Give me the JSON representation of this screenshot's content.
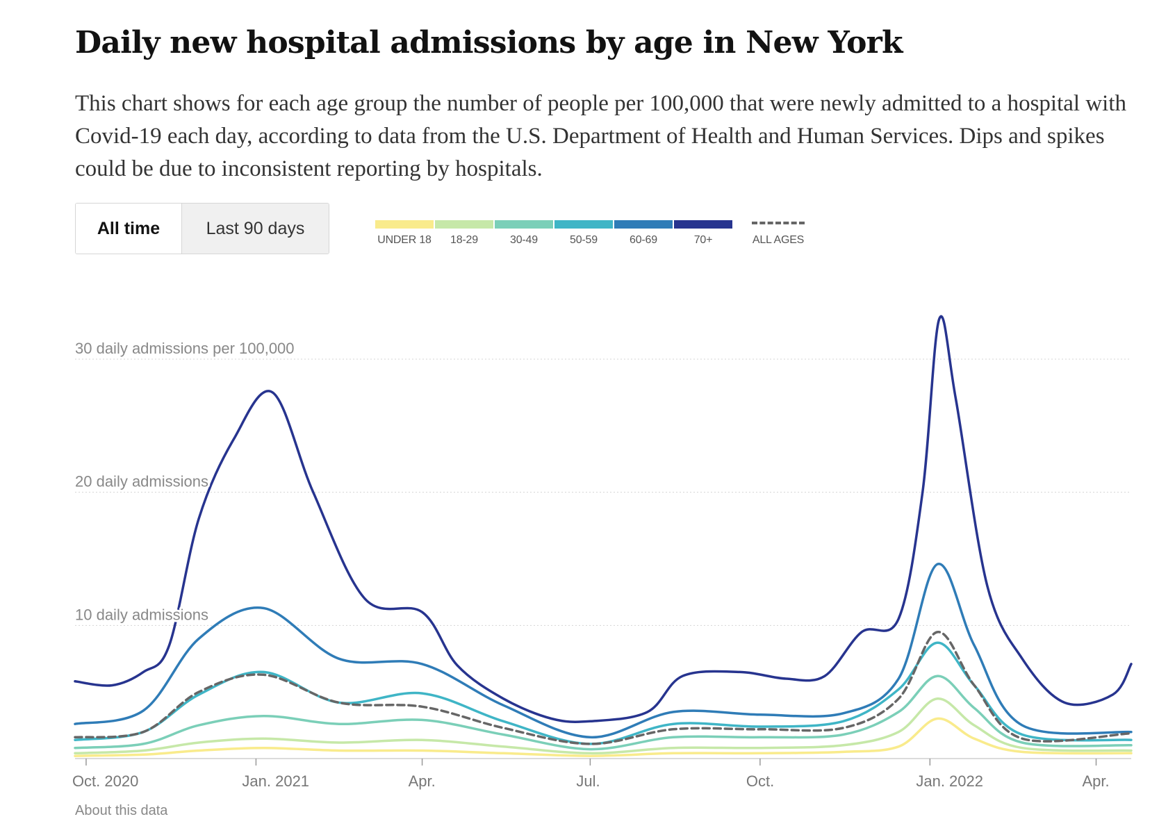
{
  "title": "Daily new hospital admissions by age in New York",
  "subtitle": "This chart shows for each age group the number of people per 100,000 that were newly admitted to a hospital with Covid-19 each day, according to data from the U.S. Department of Health and Human Services. Dips and spikes could be due to inconsistent reporting by hospitals.",
  "toggle": {
    "all_time": "All time",
    "last_90": "Last 90 days"
  },
  "legend": {
    "items": [
      {
        "label": "UNDER 18",
        "color": "#f9eb8c"
      },
      {
        "label": "18-29",
        "color": "#c6e8a8"
      },
      {
        "label": "30-49",
        "color": "#7bcfb8"
      },
      {
        "label": "50-59",
        "color": "#3fb5c6"
      },
      {
        "label": "60-69",
        "color": "#2f7cb7"
      },
      {
        "label": "70+",
        "color": "#27348f"
      }
    ],
    "all_ages": {
      "label": "ALL AGES",
      "color": "#666666"
    }
  },
  "about_text": "About this data",
  "chart_data": {
    "type": "line",
    "y_axis": {
      "ticks": [
        {
          "value": 10,
          "label": "10 daily admissions"
        },
        {
          "value": 20,
          "label": "20 daily admissions"
        },
        {
          "value": 30,
          "label": "30 daily admissions per 100,000"
        }
      ],
      "ylim": [
        0,
        34
      ]
    },
    "x_axis": {
      "range": [
        "2020-09-25",
        "2022-04-20"
      ],
      "ticks": [
        {
          "date": "2020-10-01",
          "label": "Oct. 2020"
        },
        {
          "date": "2021-01-01",
          "label": "Jan. 2021"
        },
        {
          "date": "2021-04-01",
          "label": "Apr."
        },
        {
          "date": "2021-07-01",
          "label": "Jul."
        },
        {
          "date": "2021-10-01",
          "label": "Oct."
        },
        {
          "date": "2022-01-01",
          "label": "Jan. 2022"
        },
        {
          "date": "2022-04-01",
          "label": "Apr."
        }
      ]
    },
    "grid": "horizontal dotted",
    "series": [
      {
        "name": "UNDER 18",
        "color": "#f9eb8c",
        "dashed": false,
        "points": [
          [
            "2020-09-25",
            0.2
          ],
          [
            "2020-11-01",
            0.3
          ],
          [
            "2020-12-01",
            0.6
          ],
          [
            "2021-01-05",
            0.8
          ],
          [
            "2021-02-15",
            0.6
          ],
          [
            "2021-04-01",
            0.6
          ],
          [
            "2021-05-15",
            0.4
          ],
          [
            "2021-07-01",
            0.2
          ],
          [
            "2021-08-15",
            0.4
          ],
          [
            "2021-10-01",
            0.4
          ],
          [
            "2021-11-15",
            0.5
          ],
          [
            "2021-12-15",
            0.9
          ],
          [
            "2022-01-05",
            3.0
          ],
          [
            "2022-01-25",
            1.5
          ],
          [
            "2022-02-20",
            0.5
          ],
          [
            "2022-04-20",
            0.4
          ]
        ]
      },
      {
        "name": "18-29",
        "color": "#c6e8a8",
        "dashed": false,
        "points": [
          [
            "2020-09-25",
            0.4
          ],
          [
            "2020-11-01",
            0.6
          ],
          [
            "2020-12-01",
            1.2
          ],
          [
            "2021-01-05",
            1.5
          ],
          [
            "2021-02-15",
            1.2
          ],
          [
            "2021-04-01",
            1.4
          ],
          [
            "2021-05-15",
            0.9
          ],
          [
            "2021-07-01",
            0.4
          ],
          [
            "2021-08-15",
            0.8
          ],
          [
            "2021-10-01",
            0.8
          ],
          [
            "2021-11-15",
            1.0
          ],
          [
            "2021-12-15",
            2.0
          ],
          [
            "2022-01-05",
            4.5
          ],
          [
            "2022-01-25",
            2.5
          ],
          [
            "2022-02-20",
            0.8
          ],
          [
            "2022-04-20",
            0.6
          ]
        ]
      },
      {
        "name": "30-49",
        "color": "#7bcfb8",
        "dashed": false,
        "points": [
          [
            "2020-09-25",
            0.8
          ],
          [
            "2020-11-01",
            1.1
          ],
          [
            "2020-12-01",
            2.5
          ],
          [
            "2021-01-05",
            3.2
          ],
          [
            "2021-02-15",
            2.6
          ],
          [
            "2021-04-01",
            2.9
          ],
          [
            "2021-05-15",
            1.8
          ],
          [
            "2021-07-01",
            0.7
          ],
          [
            "2021-08-15",
            1.6
          ],
          [
            "2021-10-01",
            1.6
          ],
          [
            "2021-11-15",
            1.8
          ],
          [
            "2021-12-15",
            3.5
          ],
          [
            "2022-01-05",
            6.2
          ],
          [
            "2022-01-25",
            3.8
          ],
          [
            "2022-02-20",
            1.2
          ],
          [
            "2022-04-20",
            1.0
          ]
        ]
      },
      {
        "name": "50-59",
        "color": "#3fb5c6",
        "dashed": false,
        "points": [
          [
            "2020-09-25",
            1.4
          ],
          [
            "2020-11-01",
            2.0
          ],
          [
            "2020-12-01",
            4.8
          ],
          [
            "2021-01-05",
            6.5
          ],
          [
            "2021-02-15",
            4.2
          ],
          [
            "2021-04-01",
            4.9
          ],
          [
            "2021-05-15",
            2.8
          ],
          [
            "2021-07-01",
            1.1
          ],
          [
            "2021-08-15",
            2.6
          ],
          [
            "2021-10-01",
            2.4
          ],
          [
            "2021-11-15",
            2.8
          ],
          [
            "2021-12-15",
            5.2
          ],
          [
            "2022-01-05",
            8.7
          ],
          [
            "2022-01-25",
            5.5
          ],
          [
            "2022-02-20",
            1.8
          ],
          [
            "2022-04-20",
            1.4
          ]
        ]
      },
      {
        "name": "60-69",
        "color": "#2f7cb7",
        "dashed": false,
        "points": [
          [
            "2020-09-25",
            2.6
          ],
          [
            "2020-11-01",
            3.6
          ],
          [
            "2020-12-01",
            9.0
          ],
          [
            "2021-01-05",
            11.3
          ],
          [
            "2021-02-15",
            7.5
          ],
          [
            "2021-04-01",
            7.1
          ],
          [
            "2021-05-15",
            4.0
          ],
          [
            "2021-07-01",
            1.6
          ],
          [
            "2021-08-15",
            3.5
          ],
          [
            "2021-10-01",
            3.3
          ],
          [
            "2021-11-15",
            3.4
          ],
          [
            "2021-12-15",
            6.0
          ],
          [
            "2022-01-05",
            14.6
          ],
          [
            "2022-01-25",
            8.5
          ],
          [
            "2022-02-20",
            2.5
          ],
          [
            "2022-04-20",
            2.0
          ]
        ]
      },
      {
        "name": "70+",
        "color": "#27348f",
        "dashed": false,
        "points": [
          [
            "2020-09-25",
            5.8
          ],
          [
            "2020-10-15",
            5.5
          ],
          [
            "2020-11-01",
            6.5
          ],
          [
            "2020-11-15",
            8.5
          ],
          [
            "2020-12-01",
            18.0
          ],
          [
            "2020-12-20",
            24.0
          ],
          [
            "2021-01-10",
            27.5
          ],
          [
            "2021-02-01",
            20.0
          ],
          [
            "2021-03-01",
            12.0
          ],
          [
            "2021-04-01",
            11.0
          ],
          [
            "2021-04-20",
            7.0
          ],
          [
            "2021-05-15",
            4.5
          ],
          [
            "2021-06-10",
            3.0
          ],
          [
            "2021-07-01",
            2.8
          ],
          [
            "2021-08-01",
            3.5
          ],
          [
            "2021-08-20",
            6.2
          ],
          [
            "2021-09-20",
            6.5
          ],
          [
            "2021-10-15",
            6.0
          ],
          [
            "2021-11-05",
            6.2
          ],
          [
            "2021-11-25",
            9.5
          ],
          [
            "2021-12-15",
            10.5
          ],
          [
            "2021-12-28",
            20.0
          ],
          [
            "2022-01-06",
            33.0
          ],
          [
            "2022-01-15",
            27.0
          ],
          [
            "2022-02-01",
            13.0
          ],
          [
            "2022-02-20",
            7.5
          ],
          [
            "2022-03-15",
            4.2
          ],
          [
            "2022-04-10",
            4.8
          ],
          [
            "2022-04-20",
            7.1
          ]
        ]
      },
      {
        "name": "ALL AGES",
        "color": "#666666",
        "dashed": true,
        "points": [
          [
            "2020-09-25",
            1.6
          ],
          [
            "2020-11-01",
            2.0
          ],
          [
            "2020-12-01",
            5.0
          ],
          [
            "2021-01-05",
            6.3
          ],
          [
            "2021-02-15",
            4.2
          ],
          [
            "2021-04-01",
            3.9
          ],
          [
            "2021-05-15",
            2.3
          ],
          [
            "2021-07-01",
            1.1
          ],
          [
            "2021-08-15",
            2.2
          ],
          [
            "2021-10-01",
            2.2
          ],
          [
            "2021-11-15",
            2.3
          ],
          [
            "2021-12-15",
            4.5
          ],
          [
            "2022-01-05",
            9.5
          ],
          [
            "2022-01-25",
            5.5
          ],
          [
            "2022-02-20",
            1.5
          ],
          [
            "2022-04-20",
            1.9
          ]
        ]
      }
    ]
  }
}
